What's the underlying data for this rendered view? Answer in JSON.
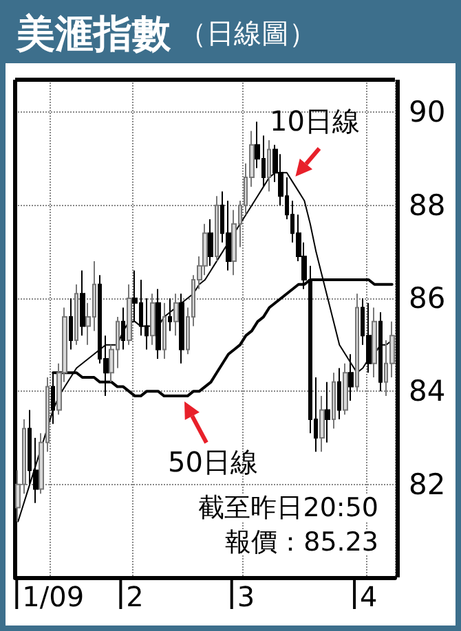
{
  "chart_data": {
    "type": "candlestick",
    "title": "美滙指數",
    "subtitle": "（日線圖）",
    "categories": [
      null,
      null,
      null,
      null,
      null,
      null,
      "1/09",
      null,
      null,
      null,
      null,
      null,
      null,
      null,
      null,
      null,
      null,
      null,
      null,
      null,
      "2",
      null,
      null,
      null,
      null,
      null,
      null,
      null,
      null,
      null,
      null,
      null,
      null,
      null,
      null,
      null,
      null,
      null,
      null,
      "3",
      null,
      null,
      null,
      null,
      null,
      null,
      null,
      null,
      null,
      null,
      null,
      null,
      null,
      null,
      null,
      null,
      null,
      null,
      null,
      null,
      "4",
      null,
      null,
      null,
      null
    ],
    "ohlc": [
      [
        81.5,
        82.3,
        81.2,
        82.0
      ],
      [
        82.0,
        83.4,
        81.8,
        83.2
      ],
      [
        83.2,
        83.6,
        82.0,
        82.3
      ],
      [
        82.3,
        83.0,
        81.6,
        81.9
      ],
      [
        81.9,
        83.1,
        81.8,
        82.9
      ],
      [
        82.9,
        84.3,
        82.7,
        84.1
      ],
      [
        84.1,
        84.4,
        83.3,
        83.6
      ],
      [
        83.6,
        84.6,
        83.5,
        84.4
      ],
      [
        84.4,
        85.8,
        84.2,
        85.6
      ],
      [
        85.6,
        86.0,
        84.9,
        85.1
      ],
      [
        85.1,
        86.3,
        85.0,
        86.1
      ],
      [
        86.1,
        86.6,
        85.2,
        85.4
      ],
      [
        85.4,
        85.9,
        85.0,
        85.6
      ],
      [
        85.6,
        86.8,
        85.3,
        86.3
      ],
      [
        86.3,
        86.5,
        84.6,
        84.7
      ],
      [
        84.7,
        85.2,
        83.9,
        84.4
      ],
      [
        84.4,
        85.0,
        84.2,
        84.9
      ],
      [
        84.9,
        85.6,
        84.5,
        85.5
      ],
      [
        85.5,
        85.8,
        84.9,
        85.1
      ],
      [
        85.1,
        86.3,
        85.0,
        86.0
      ],
      [
        86.0,
        86.6,
        85.5,
        85.9
      ],
      [
        85.9,
        86.4,
        85.2,
        85.4
      ],
      [
        85.4,
        86.0,
        84.9,
        85.2
      ],
      [
        85.2,
        86.1,
        85.0,
        85.9
      ],
      [
        85.9,
        86.2,
        84.7,
        84.9
      ],
      [
        84.9,
        85.9,
        84.7,
        85.6
      ],
      [
        85.6,
        86.0,
        85.3,
        85.5
      ],
      [
        85.5,
        86.1,
        85.2,
        85.9
      ],
      [
        85.9,
        86.1,
        84.6,
        84.9
      ],
      [
        84.9,
        85.8,
        84.8,
        85.6
      ],
      [
        85.6,
        86.5,
        85.4,
        86.4
      ],
      [
        86.4,
        86.9,
        86.2,
        86.7
      ],
      [
        86.7,
        87.6,
        86.5,
        87.4
      ],
      [
        87.4,
        87.7,
        86.7,
        86.9
      ],
      [
        86.9,
        88.2,
        86.8,
        88.0
      ],
      [
        88.0,
        88.3,
        87.2,
        87.4
      ],
      [
        87.4,
        88.1,
        86.6,
        86.8
      ],
      [
        86.8,
        87.9,
        86.5,
        87.6
      ],
      [
        87.6,
        88.1,
        87.1,
        88.0
      ],
      [
        88.0,
        88.9,
        87.8,
        88.6
      ],
      [
        88.6,
        89.6,
        88.4,
        89.3
      ],
      [
        89.3,
        89.8,
        88.8,
        89.0
      ],
      [
        89.0,
        89.5,
        88.4,
        88.6
      ],
      [
        88.6,
        89.4,
        88.3,
        89.2
      ],
      [
        89.2,
        89.3,
        88.5,
        88.7
      ],
      [
        88.7,
        89.1,
        88.0,
        88.2
      ],
      [
        88.2,
        88.6,
        87.7,
        87.8
      ],
      [
        87.8,
        88.1,
        87.2,
        87.4
      ],
      [
        87.4,
        87.8,
        86.8,
        86.9
      ],
      [
        86.9,
        87.2,
        86.2,
        86.4
      ],
      [
        86.4,
        86.7,
        83.1,
        83.4
      ],
      [
        83.4,
        84.3,
        82.7,
        83.0
      ],
      [
        83.0,
        83.9,
        82.7,
        83.6
      ],
      [
        83.6,
        84.2,
        82.9,
        83.4
      ],
      [
        83.4,
        84.4,
        83.2,
        84.2
      ],
      [
        84.2,
        84.5,
        83.4,
        83.6
      ],
      [
        83.6,
        84.6,
        83.5,
        84.4
      ],
      [
        84.4,
        84.8,
        83.8,
        84.1
      ],
      [
        84.1,
        86.1,
        84.0,
        85.8
      ],
      [
        85.8,
        86.0,
        85.0,
        85.2
      ],
      [
        85.2,
        85.9,
        84.4,
        84.6
      ],
      [
        84.6,
        85.8,
        84.3,
        85.5
      ],
      [
        85.5,
        85.7,
        84.0,
        84.2
      ],
      [
        84.2,
        85.1,
        83.9,
        84.6
      ],
      [
        84.6,
        85.5,
        84.3,
        85.2
      ]
    ],
    "series": [
      {
        "name": "10日線",
        "type": "line",
        "color": "#000000",
        "values": [
          81.2,
          81.6,
          82.0,
          82.4,
          82.8,
          83.2,
          83.6,
          83.9,
          84.1,
          84.3,
          84.5,
          84.6,
          84.7,
          84.8,
          84.9,
          85.0,
          85.0,
          85.0,
          85.3,
          85.5,
          85.5,
          85.4,
          85.4,
          85.4,
          85.4,
          85.6,
          85.7,
          85.8,
          85.9,
          86.0,
          86.1,
          86.3,
          86.4,
          86.6,
          86.8,
          87.0,
          87.2,
          87.4,
          87.6,
          87.8,
          88.0,
          88.2,
          88.4,
          88.6,
          88.7,
          88.7,
          88.7,
          88.5,
          88.3,
          88.1,
          87.6,
          87.0,
          86.5,
          86.0,
          85.5,
          85.0,
          84.8,
          84.6,
          84.4,
          84.5,
          84.7,
          84.8,
          85.0,
          85.0,
          85.1
        ]
      },
      {
        "name": "50日線",
        "type": "line",
        "color": "#000000",
        "values": [
          null,
          null,
          null,
          null,
          null,
          null,
          84.4,
          84.4,
          84.4,
          84.4,
          84.4,
          84.3,
          84.3,
          84.3,
          84.2,
          84.2,
          84.2,
          84.1,
          84.1,
          84.0,
          83.9,
          83.9,
          84.0,
          84.0,
          84.0,
          83.9,
          83.9,
          83.9,
          83.9,
          83.9,
          84.0,
          84.0,
          84.1,
          84.2,
          84.4,
          84.6,
          84.8,
          84.9,
          85.0,
          85.2,
          85.3,
          85.5,
          85.6,
          85.8,
          85.9,
          86.0,
          86.1,
          86.2,
          86.3,
          86.3,
          86.4,
          86.4,
          86.4,
          86.4,
          86.4,
          86.4,
          86.4,
          86.4,
          86.4,
          86.4,
          86.4,
          86.3,
          86.3,
          86.3,
          86.3
        ]
      }
    ],
    "ylim": [
      80,
      90.7
    ],
    "yticks": [
      82,
      84,
      86,
      88,
      90
    ],
    "grid": true,
    "legend": false,
    "marker": "none",
    "line_style": "solid",
    "annotations": [
      "截至昨日20:50",
      "報價：85.23"
    ]
  }
}
